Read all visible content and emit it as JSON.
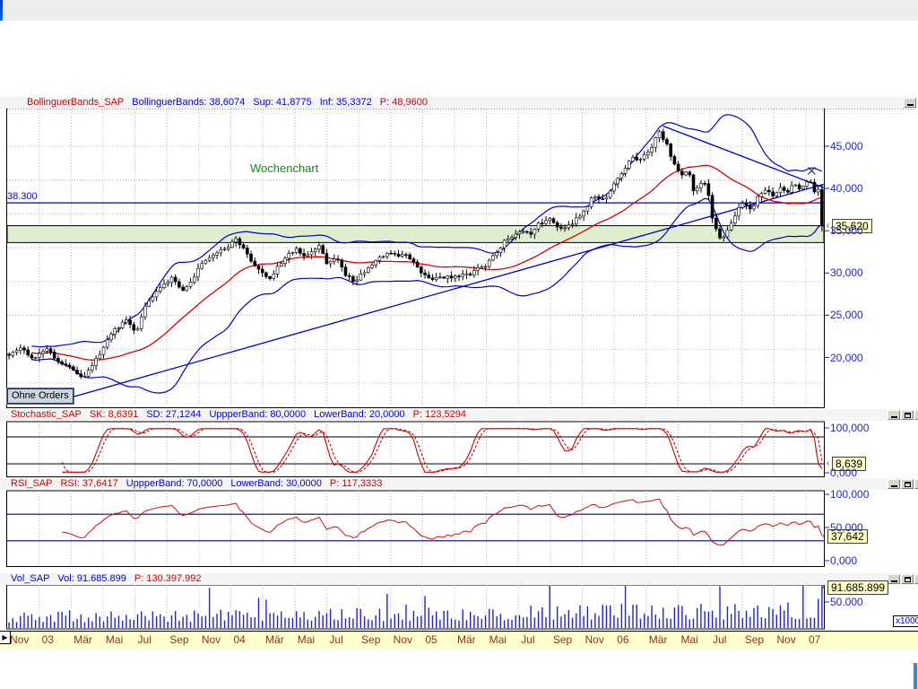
{
  "colors": {
    "title_red": "#cc0000",
    "title_blue": "#0000dd",
    "axis_blue": "#2222cc",
    "x_label_maroon": "#8b3030",
    "candle_black": "#000000",
    "ma_red": "#dd0000",
    "band_blue": "#0000cc",
    "support_zone_green": "#ddefcf",
    "badge_yellow": "#ffffc8",
    "axis_strip_yellow": "#ffffcc",
    "volume_blue": "#2222cc",
    "scroll_accent_blue": "#2a8fd8"
  },
  "icons": {
    "close": "×",
    "play_arrow": "▶",
    "badge_arrow": "‹"
  },
  "ui": {
    "window_buttons": [
      "minimize",
      "maximize",
      "close"
    ],
    "price_panel": {
      "title_segments": [
        {
          "text": "BollinguerBands_SAP",
          "color": "#cc0000"
        },
        {
          "text": "BollinguerBands: 38,6074",
          "color": "#0000dd"
        },
        {
          "text": "Sup: 41,8775",
          "color": "#0000dd"
        },
        {
          "text": "Inf: 35,3372",
          "color": "#0000dd"
        },
        {
          "text": "P: 48,9600",
          "color": "#cc0000"
        }
      ],
      "annotation_label": "Wochenchart",
      "resistance_label": "38.300",
      "orders_button": "Ohne Orders",
      "badge": "35,620",
      "y_ticks": [
        {
          "label": "45,000",
          "v": 45
        },
        {
          "label": "40,000",
          "v": 40
        },
        {
          "label": "35,000",
          "v": 35
        },
        {
          "label": "30,000",
          "v": 30
        },
        {
          "label": "25,000",
          "v": 25
        },
        {
          "label": "20,000",
          "v": 20
        }
      ]
    },
    "stochastic_panel": {
      "title_segments": [
        {
          "text": "Stochastic_SAP",
          "color": "#cc0000"
        },
        {
          "text": "SK: 8,6391",
          "color": "#cc0000"
        },
        {
          "text": "SD: 27,1244",
          "color": "#0000dd"
        },
        {
          "text": "UppperBand: 80,0000",
          "color": "#0000dd"
        },
        {
          "text": "LowerBand: 20,0000",
          "color": "#0000dd"
        },
        {
          "text": "P: 123,5294",
          "color": "#cc0000"
        }
      ],
      "badge": "8,639",
      "y_ticks": [
        {
          "label": "100,000",
          "v": 100
        },
        {
          "label": "0,000",
          "v": 0
        }
      ]
    },
    "rsi_panel": {
      "title_segments": [
        {
          "text": "RSI_SAP",
          "color": "#cc0000"
        },
        {
          "text": "RSI: 37,6417",
          "color": "#cc0000"
        },
        {
          "text": "UppperBand: 70,0000",
          "color": "#0000dd"
        },
        {
          "text": "LowerBand: 30,0000",
          "color": "#0000dd"
        },
        {
          "text": "P: 117,3333",
          "color": "#cc0000"
        }
      ],
      "badge": "37,642",
      "y_ticks": [
        {
          "label": "100,000",
          "v": 100
        },
        {
          "label": "50,000",
          "v": 50
        },
        {
          "label": "0,000",
          "v": 0
        }
      ]
    },
    "volume_panel": {
      "title_segments": [
        {
          "text": "Vol_SAP",
          "color": "#0000dd"
        },
        {
          "text": "Vol: 91.685.899",
          "color": "#0000dd"
        },
        {
          "text": "P: 130.397.992",
          "color": "#cc0000"
        }
      ],
      "badge": "91.685.899",
      "unit_label": "x1000",
      "y_ticks": [
        {
          "label": "50.000",
          "v": 50
        }
      ]
    },
    "x_axis_labels": [
      "Nov",
      "03",
      "Mär",
      "Mai",
      "Jul",
      "Sep",
      "Nov",
      "04",
      "Mär",
      "Mai",
      "Jul",
      "Sep",
      "Nov",
      "05",
      "Mär",
      "Mai",
      "Jul",
      "Sep",
      "Nov",
      "06",
      "Mär",
      "Mai",
      "Jul",
      "Sep",
      "Nov",
      "07"
    ]
  },
  "chart_data": {
    "type": "candlestick",
    "instrument": "SAP",
    "timeframe_label": "Wochenchart",
    "x_labels": [
      "Nov",
      "03",
      "Mär",
      "Mai",
      "Jul",
      "Sep",
      "Nov",
      "04",
      "Mär",
      "Mai",
      "Jul",
      "Sep",
      "Nov",
      "05",
      "Mär",
      "Mai",
      "Jul",
      "Sep",
      "Nov",
      "06",
      "Mär",
      "Mai",
      "Jul",
      "Sep",
      "Nov",
      "07"
    ],
    "price_axis_ticks": [
      45000,
      40000,
      35000,
      30000,
      25000,
      20000
    ],
    "last_close": 35620,
    "resistance_level": 38300,
    "support_zone": [
      33600,
      35600
    ],
    "close_path_anchors": [
      [
        0,
        20.2
      ],
      [
        0.013,
        21
      ],
      [
        0.03,
        19.8
      ],
      [
        0.046,
        21.3
      ],
      [
        0.063,
        19.2
      ],
      [
        0.079,
        18.2
      ],
      [
        0.095,
        17.9
      ],
      [
        0.112,
        20.5
      ],
      [
        0.128,
        23
      ],
      [
        0.145,
        24.5
      ],
      [
        0.156,
        23.2
      ],
      [
        0.167,
        26
      ],
      [
        0.183,
        28
      ],
      [
        0.2,
        29.5
      ],
      [
        0.216,
        27.8
      ],
      [
        0.233,
        30.5
      ],
      [
        0.249,
        32
      ],
      [
        0.266,
        33.2
      ],
      [
        0.279,
        33.8
      ],
      [
        0.293,
        32.5
      ],
      [
        0.31,
        30
      ],
      [
        0.32,
        29.3
      ],
      [
        0.337,
        31.5
      ],
      [
        0.353,
        32.8
      ],
      [
        0.364,
        31.8
      ],
      [
        0.381,
        33
      ],
      [
        0.392,
        31
      ],
      [
        0.403,
        32.2
      ],
      [
        0.414,
        29.8
      ],
      [
        0.425,
        28.9
      ],
      [
        0.441,
        30.5
      ],
      [
        0.458,
        31.8
      ],
      [
        0.474,
        32.4
      ],
      [
        0.491,
        31.9
      ],
      [
        0.504,
        30.2
      ],
      [
        0.518,
        29.2
      ],
      [
        0.535,
        29.6
      ],
      [
        0.551,
        29.4
      ],
      [
        0.567,
        29.9
      ],
      [
        0.584,
        30.6
      ],
      [
        0.597,
        32
      ],
      [
        0.608,
        33.8
      ],
      [
        0.619,
        34.6
      ],
      [
        0.63,
        35.4
      ],
      [
        0.641,
        34.9
      ],
      [
        0.652,
        35.8
      ],
      [
        0.666,
        36.3
      ],
      [
        0.681,
        35.3
      ],
      [
        0.694,
        36.1
      ],
      [
        0.707,
        37.4
      ],
      [
        0.719,
        39.3
      ],
      [
        0.731,
        38.6
      ],
      [
        0.743,
        40.3
      ],
      [
        0.755,
        42
      ],
      [
        0.766,
        43.4
      ],
      [
        0.776,
        43
      ],
      [
        0.788,
        44.6
      ],
      [
        0.8,
        46.9
      ],
      [
        0.809,
        45.2
      ],
      [
        0.818,
        42.8
      ],
      [
        0.826,
        41.4
      ],
      [
        0.835,
        42.4
      ],
      [
        0.843,
        39.6
      ],
      [
        0.851,
        40.9
      ],
      [
        0.859,
        40.2
      ],
      [
        0.867,
        35.8
      ],
      [
        0.876,
        33.9
      ],
      [
        0.883,
        35.3
      ],
      [
        0.891,
        36.8
      ],
      [
        0.904,
        38.6
      ],
      [
        0.913,
        37.7
      ],
      [
        0.922,
        39.3
      ],
      [
        0.931,
        40.1
      ],
      [
        0.939,
        39.2
      ],
      [
        0.948,
        40.3
      ],
      [
        0.957,
        39.7
      ],
      [
        0.966,
        40.6
      ],
      [
        0.975,
        40
      ],
      [
        0.983,
        41.2
      ],
      [
        0.99,
        39.9
      ],
      [
        1,
        35.6
      ]
    ],
    "trendlines": {
      "uptrend": [
        [
          0.068,
          15.0
        ],
        [
          1.0,
          40.5
        ]
      ],
      "downtrend": [
        [
          0.803,
          47.4
        ],
        [
          1.0,
          40.1
        ]
      ]
    },
    "bollinger": {
      "middle": 38.6074,
      "sup": 41.8775,
      "inf": 35.3372,
      "p": 48.96,
      "window": 26
    },
    "stochastic": {
      "sk": 8.6391,
      "sd": 27.1244,
      "upper_band": 80.0,
      "lower_band": 20.0,
      "p": 123.5294,
      "period": 14
    },
    "rsi": {
      "value": 37.6417,
      "upper_band": 70.0,
      "lower_band": 30.0,
      "p": 117.3333,
      "period": 14
    },
    "volume": {
      "last": "91.685.899",
      "p": "130.397.992",
      "axis_tick": "50.000",
      "unit": "x1000"
    }
  }
}
